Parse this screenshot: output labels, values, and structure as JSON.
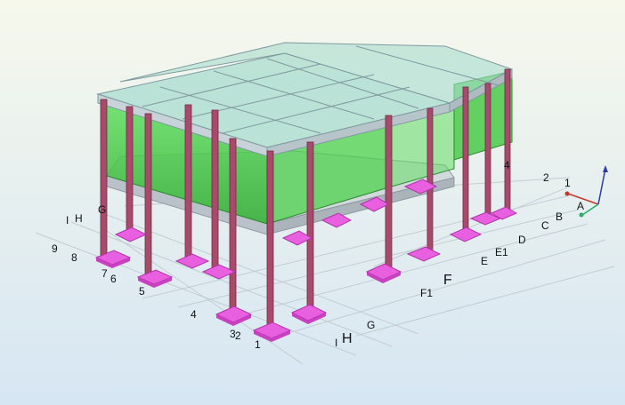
{
  "viewport": {
    "grid_labels_front_numbers": [
      "9",
      "8",
      "7",
      "6",
      "5",
      "4",
      "3",
      "2",
      "1"
    ],
    "grid_labels_front_letters": [
      "I",
      "H",
      "G"
    ],
    "grid_labels_right_letters": [
      "G",
      "F1",
      "F",
      "E",
      "E1",
      "D",
      "C",
      "B"
    ],
    "grid_labels_bottom_letters": [
      "I",
      "H"
    ],
    "grid_labels_back_numbers": [
      "4",
      "2",
      "1"
    ],
    "axis_triad": {
      "x_label": "A",
      "x_color": "#c0392b",
      "y_color": "#27ae60",
      "z_color": "#2c3e9e"
    },
    "colors": {
      "background_top": "#f6f8ec",
      "background_bottom": "#d9e8f4",
      "column": "#a84a6a",
      "footing": "#e85fe0",
      "wall": "#3fc83f",
      "slab": "#c9d2d8",
      "roof_glass": "#9fd8c8",
      "grid_line": "#b8c4cc"
    }
  }
}
